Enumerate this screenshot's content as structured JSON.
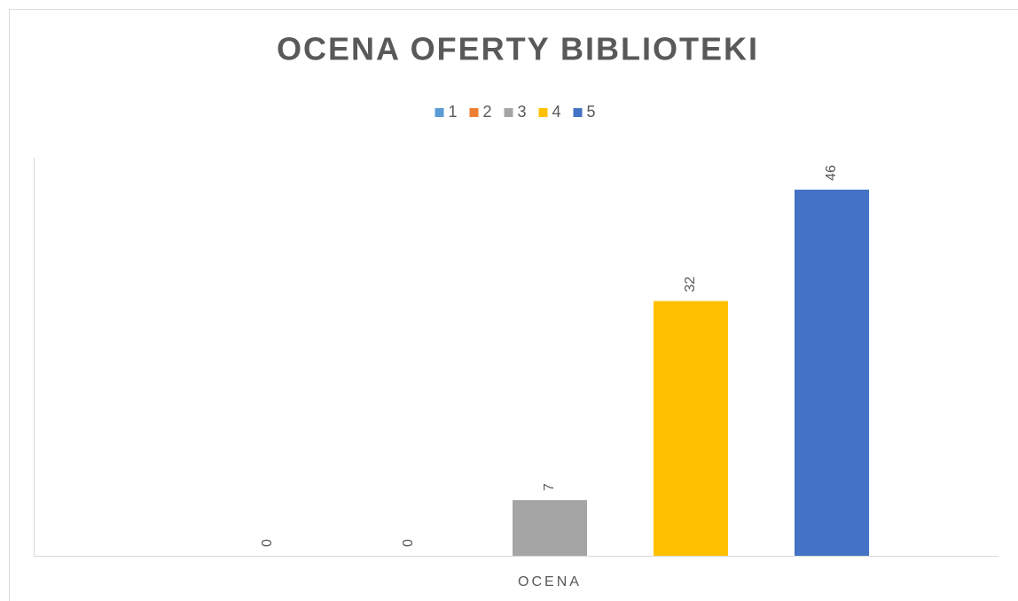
{
  "chart_data": {
    "type": "bar",
    "title": "OCENA OFERTY BIBLIOTEKI",
    "categories": [
      "OCENA"
    ],
    "series": [
      {
        "name": "1",
        "color": "#5B9BD5",
        "values": [
          0
        ]
      },
      {
        "name": "2",
        "color": "#ED7D31",
        "values": [
          0
        ]
      },
      {
        "name": "3",
        "color": "#A5A5A5",
        "values": [
          7
        ]
      },
      {
        "name": "4",
        "color": "#FFC000",
        "values": [
          32
        ]
      },
      {
        "name": "5",
        "color": "#4472C4",
        "values": [
          46
        ]
      }
    ],
    "ylim": [
      0,
      50
    ],
    "grid": false,
    "legend": "top",
    "data_labels": true
  }
}
